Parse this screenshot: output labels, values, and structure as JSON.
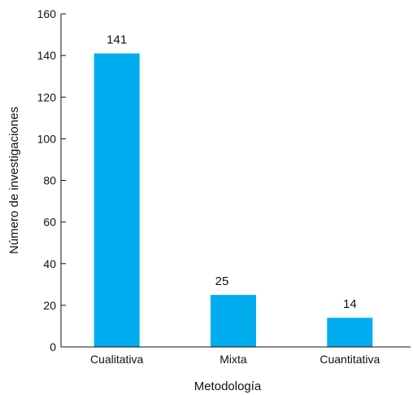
{
  "chart_data": {
    "type": "bar",
    "categories": [
      "Cualitativa",
      "Mixta",
      "Cuantitativa"
    ],
    "values": [
      141,
      25,
      14
    ],
    "data_labels": [
      "141",
      "25",
      "14"
    ],
    "xlabel": "Metodología",
    "ylabel": "Número de investigaciones",
    "ylim": [
      0,
      160
    ],
    "yticks": [
      0,
      20,
      40,
      60,
      80,
      100,
      120,
      140,
      160
    ],
    "ytick_labels": [
      "0",
      "20",
      "40",
      "60",
      "80",
      "100",
      "120",
      "140",
      "160"
    ],
    "bar_color": "#00adef",
    "grid": false,
    "legend": "none"
  }
}
